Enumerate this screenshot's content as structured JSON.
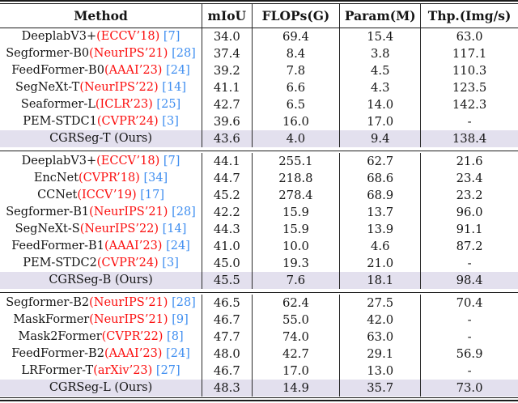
{
  "table": {
    "columns": [
      {
        "label": "Method"
      },
      {
        "label": "mIoU"
      },
      {
        "label": "FLOPs(G)"
      },
      {
        "label": "Param(M)"
      },
      {
        "label": "Thp.(Img/s)"
      }
    ],
    "groups": [
      {
        "rows": [
          {
            "method": "DeeplabV3+",
            "venue": "(ECCV’18)",
            "cite": "[7]",
            "miou": "34.0",
            "flops": "69.4",
            "param": "15.4",
            "thp": "63.0",
            "ours": false
          },
          {
            "method": "Segformer-B0",
            "venue": "(NeurIPS’21)",
            "cite": "[28]",
            "miou": "37.4",
            "flops": "8.4",
            "param": "3.8",
            "thp": "117.1",
            "ours": false
          },
          {
            "method": "FeedFormer-B0",
            "venue": "(AAAI’23)",
            "cite": "[24]",
            "miou": "39.2",
            "flops": "7.8",
            "param": "4.5",
            "thp": "110.3",
            "ours": false
          },
          {
            "method": "SegNeXt-T",
            "venue": "(NeurIPS’22)",
            "cite": "[14]",
            "miou": "41.1",
            "flops": "6.6",
            "param": "4.3",
            "thp": "123.5",
            "ours": false
          },
          {
            "method": "Seaformer-L",
            "venue": "(ICLR’23)",
            "cite": "[25]",
            "miou": "42.7",
            "flops": "6.5",
            "param": "14.0",
            "thp": "142.3",
            "ours": false
          },
          {
            "method": "PEM-STDC1",
            "venue": "(CVPR’24)",
            "cite": "[3]",
            "miou": "39.6",
            "flops": "16.0",
            "param": "17.0",
            "thp": "-",
            "ours": false
          },
          {
            "method": "CGRSeg-T (Ours)",
            "venue": "",
            "cite": "",
            "miou": "43.6",
            "flops": "4.0",
            "param": "9.4",
            "thp": "138.4",
            "ours": true
          }
        ]
      },
      {
        "rows": [
          {
            "method": "DeeplabV3+",
            "venue": "(ECCV’18)",
            "cite": "[7]",
            "miou": "44.1",
            "flops": "255.1",
            "param": "62.7",
            "thp": "21.6",
            "ours": false
          },
          {
            "method": "EncNet",
            "venue": "(CVPR’18)",
            "cite": "[34]",
            "miou": "44.7",
            "flops": "218.8",
            "param": "68.6",
            "thp": "23.4",
            "ours": false
          },
          {
            "method": "CCNet",
            "venue": "(ICCV’19)",
            "cite": "[17]",
            "miou": "45.2",
            "flops": "278.4",
            "param": "68.9",
            "thp": "23.2",
            "ours": false
          },
          {
            "method": "Segformer-B1",
            "venue": "(NeurIPS’21)",
            "cite": "[28]",
            "miou": "42.2",
            "flops": "15.9",
            "param": "13.7",
            "thp": "96.0",
            "ours": false
          },
          {
            "method": "SegNeXt-S",
            "venue": "(NeurIPS’22)",
            "cite": "[14]",
            "miou": "44.3",
            "flops": "15.9",
            "param": "13.9",
            "thp": "91.1",
            "ours": false
          },
          {
            "method": "FeedFormer-B1",
            "venue": "(AAAI’23)",
            "cite": "[24]",
            "miou": "41.0",
            "flops": "10.0",
            "param": "4.6",
            "thp": "87.2",
            "ours": false
          },
          {
            "method": "PEM-STDC2",
            "venue": "(CVPR’24)",
            "cite": "[3]",
            "miou": "45.0",
            "flops": "19.3",
            "param": "21.0",
            "thp": "-",
            "ours": false
          },
          {
            "method": "CGRSeg-B (Ours)",
            "venue": "",
            "cite": "",
            "miou": "45.5",
            "flops": "7.6",
            "param": "18.1",
            "thp": "98.4",
            "ours": true
          }
        ]
      },
      {
        "rows": [
          {
            "method": "Segformer-B2",
            "venue": "(NeurIPS’21)",
            "cite": "[28]",
            "miou": "46.5",
            "flops": "62.4",
            "param": "27.5",
            "thp": "70.4",
            "ours": false
          },
          {
            "method": "MaskFormer",
            "venue": "(NeurIPS’21)",
            "cite": "[9]",
            "miou": "46.7",
            "flops": "55.0",
            "param": "42.0",
            "thp": "-",
            "ours": false
          },
          {
            "method": "Mask2Former",
            "venue": "(CVPR’22)",
            "cite": "[8]",
            "miou": "47.7",
            "flops": "74.0",
            "param": "63.0",
            "thp": "-",
            "ours": false
          },
          {
            "method": "FeedFormer-B2",
            "venue": "(AAAI’23)",
            "cite": "[24]",
            "miou": "48.0",
            "flops": "42.7",
            "param": "29.1",
            "thp": "56.9",
            "ours": false
          },
          {
            "method": "LRFormer-T",
            "venue": "(arXiv’23)",
            "cite": "[27]",
            "miou": "46.7",
            "flops": "17.0",
            "param": "13.0",
            "thp": "-",
            "ours": false
          },
          {
            "method": "CGRSeg-L (Ours)",
            "venue": "",
            "cite": "",
            "miou": "48.3",
            "flops": "14.9",
            "param": "35.7",
            "thp": "73.0",
            "ours": true
          }
        ]
      }
    ]
  },
  "colors": {
    "venue_accent": "#fb0e0e",
    "citation_link": "#3f8ef0",
    "ours_row_highlight": "#e3e0ee",
    "rule": "#1c1c1c"
  }
}
